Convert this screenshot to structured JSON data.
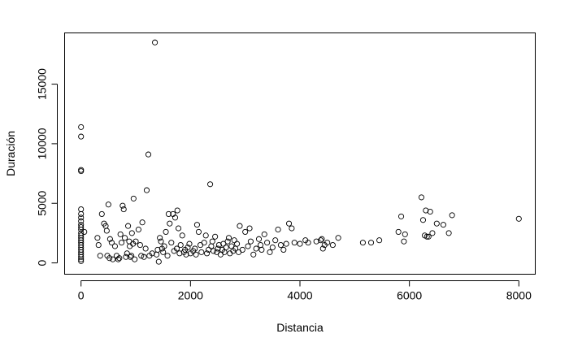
{
  "chart_data": {
    "type": "scatter",
    "title": "",
    "xlabel": "Distancia",
    "ylabel": "Duración",
    "xlim": [
      -300,
      8300
    ],
    "ylim": [
      -950,
      19300
    ],
    "grid": false,
    "legend": "none",
    "x_ticks": [
      0,
      2000,
      4000,
      6000,
      8000
    ],
    "y_ticks": [
      0,
      5000,
      10000,
      15000
    ],
    "x_tick_labels": [
      "0",
      "2000",
      "4000",
      "6000",
      "8000"
    ],
    "y_tick_labels": [
      "0",
      "5000",
      "10000",
      "15000"
    ],
    "points": [
      [
        0,
        11400
      ],
      [
        0,
        10600
      ],
      [
        0,
        7800
      ],
      [
        0,
        7700
      ],
      [
        0,
        4500
      ],
      [
        0,
        4100
      ],
      [
        0,
        3800
      ],
      [
        0,
        3500
      ],
      [
        0,
        3200
      ],
      [
        0,
        3000
      ],
      [
        0,
        2800
      ],
      [
        0,
        2500
      ],
      [
        0,
        2300
      ],
      [
        0,
        2100
      ],
      [
        0,
        1900
      ],
      [
        0,
        1700
      ],
      [
        0,
        1500
      ],
      [
        0,
        1300
      ],
      [
        0,
        1100
      ],
      [
        0,
        900
      ],
      [
        0,
        700
      ],
      [
        0,
        500
      ],
      [
        0,
        300
      ],
      [
        0,
        150
      ],
      [
        60,
        2600
      ],
      [
        300,
        2100
      ],
      [
        320,
        1500
      ],
      [
        350,
        600
      ],
      [
        380,
        4100
      ],
      [
        420,
        3300
      ],
      [
        450,
        3100
      ],
      [
        470,
        2700
      ],
      [
        480,
        600
      ],
      [
        500,
        4900
      ],
      [
        520,
        400
      ],
      [
        530,
        2000
      ],
      [
        560,
        1700
      ],
      [
        580,
        300
      ],
      [
        620,
        1400
      ],
      [
        650,
        600
      ],
      [
        680,
        300
      ],
      [
        700,
        400
      ],
      [
        720,
        2400
      ],
      [
        740,
        1700
      ],
      [
        760,
        4800
      ],
      [
        780,
        4500
      ],
      [
        800,
        2100
      ],
      [
        820,
        500
      ],
      [
        840,
        800
      ],
      [
        860,
        3100
      ],
      [
        880,
        1800
      ],
      [
        890,
        1400
      ],
      [
        900,
        500
      ],
      [
        920,
        600
      ],
      [
        930,
        2500
      ],
      [
        950,
        1600
      ],
      [
        960,
        5400
      ],
      [
        980,
        300
      ],
      [
        1000,
        1800
      ],
      [
        1050,
        2800
      ],
      [
        1080,
        1500
      ],
      [
        1100,
        600
      ],
      [
        1120,
        3400
      ],
      [
        1150,
        500
      ],
      [
        1180,
        1200
      ],
      [
        1200,
        6100
      ],
      [
        1230,
        9100
      ],
      [
        1250,
        600
      ],
      [
        1300,
        800
      ],
      [
        1350,
        18500
      ],
      [
        1380,
        700
      ],
      [
        1400,
        1100
      ],
      [
        1420,
        100
      ],
      [
        1440,
        2100
      ],
      [
        1460,
        1800
      ],
      [
        1480,
        1200
      ],
      [
        1500,
        900
      ],
      [
        1520,
        1400
      ],
      [
        1550,
        2600
      ],
      [
        1580,
        600
      ],
      [
        1600,
        4100
      ],
      [
        1620,
        3300
      ],
      [
        1650,
        1700
      ],
      [
        1680,
        4100
      ],
      [
        1700,
        1000
      ],
      [
        1720,
        3800
      ],
      [
        1750,
        1200
      ],
      [
        1760,
        4400
      ],
      [
        1780,
        2900
      ],
      [
        1800,
        800
      ],
      [
        1820,
        1500
      ],
      [
        1850,
        2300
      ],
      [
        1880,
        900
      ],
      [
        1900,
        1100
      ],
      [
        1920,
        700
      ],
      [
        1950,
        1300
      ],
      [
        1980,
        1600
      ],
      [
        2000,
        800
      ],
      [
        2050,
        1000
      ],
      [
        2080,
        1200
      ],
      [
        2100,
        700
      ],
      [
        2120,
        3200
      ],
      [
        2150,
        2600
      ],
      [
        2180,
        1500
      ],
      [
        2200,
        900
      ],
      [
        2250,
        1700
      ],
      [
        2280,
        2300
      ],
      [
        2300,
        800
      ],
      [
        2330,
        1100
      ],
      [
        2360,
        6600
      ],
      [
        2380,
        1400
      ],
      [
        2400,
        1800
      ],
      [
        2420,
        1000
      ],
      [
        2450,
        2200
      ],
      [
        2480,
        900
      ],
      [
        2500,
        1200
      ],
      [
        2520,
        1500
      ],
      [
        2550,
        700
      ],
      [
        2580,
        1100
      ],
      [
        2600,
        1600
      ],
      [
        2620,
        900
      ],
      [
        2650,
        1300
      ],
      [
        2680,
        1800
      ],
      [
        2700,
        2100
      ],
      [
        2720,
        800
      ],
      [
        2750,
        1400
      ],
      [
        2780,
        1000
      ],
      [
        2800,
        1900
      ],
      [
        2820,
        1200
      ],
      [
        2850,
        1600
      ],
      [
        2880,
        900
      ],
      [
        2900,
        3100
      ],
      [
        2950,
        1100
      ],
      [
        3000,
        2600
      ],
      [
        3050,
        1400
      ],
      [
        3080,
        2900
      ],
      [
        3100,
        1800
      ],
      [
        3150,
        700
      ],
      [
        3200,
        1200
      ],
      [
        3250,
        2000
      ],
      [
        3280,
        1500
      ],
      [
        3300,
        1100
      ],
      [
        3350,
        2400
      ],
      [
        3400,
        1700
      ],
      [
        3450,
        900
      ],
      [
        3500,
        1300
      ],
      [
        3550,
        1900
      ],
      [
        3600,
        2800
      ],
      [
        3650,
        1500
      ],
      [
        3700,
        1100
      ],
      [
        3750,
        1600
      ],
      [
        3800,
        3300
      ],
      [
        3850,
        2900
      ],
      [
        3900,
        1700
      ],
      [
        4000,
        1600
      ],
      [
        4100,
        1900
      ],
      [
        4150,
        1700
      ],
      [
        4300,
        1800
      ],
      [
        4380,
        1900
      ],
      [
        4400,
        2000
      ],
      [
        4420,
        1200
      ],
      [
        4450,
        1500
      ],
      [
        4500,
        1700
      ],
      [
        4600,
        1500
      ],
      [
        4700,
        2100
      ],
      [
        5150,
        1700
      ],
      [
        5300,
        1700
      ],
      [
        5450,
        1900
      ],
      [
        5800,
        2600
      ],
      [
        5850,
        3900
      ],
      [
        5900,
        1800
      ],
      [
        5920,
        2400
      ],
      [
        6220,
        5500
      ],
      [
        6250,
        3600
      ],
      [
        6280,
        2300
      ],
      [
        6300,
        4400
      ],
      [
        6320,
        2200
      ],
      [
        6350,
        2200
      ],
      [
        6380,
        4300
      ],
      [
        6420,
        2500
      ],
      [
        6500,
        3300
      ],
      [
        6620,
        3200
      ],
      [
        6720,
        2500
      ],
      [
        6780,
        4000
      ],
      [
        8000,
        3700
      ]
    ]
  }
}
